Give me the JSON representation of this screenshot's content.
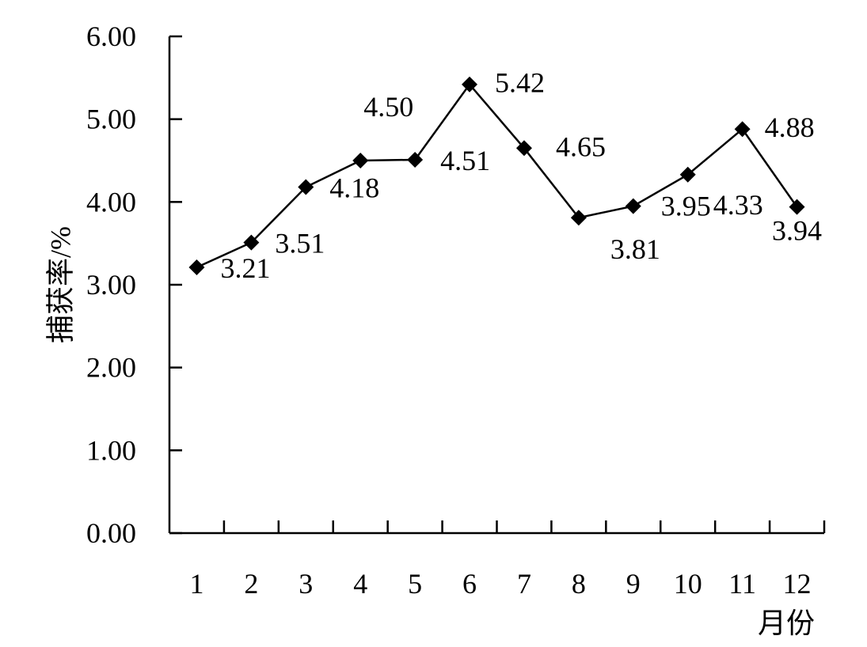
{
  "chart_data": {
    "type": "line",
    "title": "",
    "xlabel": "月份",
    "ylabel": "捕获率/%",
    "categories": [
      "1",
      "2",
      "3",
      "4",
      "5",
      "6",
      "7",
      "8",
      "9",
      "10",
      "11",
      "12"
    ],
    "series": [
      {
        "values": [
          3.21,
          3.51,
          4.18,
          4.5,
          4.51,
          5.42,
          4.65,
          3.81,
          3.95,
          4.33,
          4.88,
          3.94
        ],
        "marker": "diamond",
        "color": "#000000"
      }
    ],
    "data_labels": [
      "3.21",
      "3.51",
      "4.18",
      "4.50",
      "4.51",
      "5.42",
      "4.65",
      "3.81",
      "3.95",
      "4.33",
      "4.88",
      "3.94"
    ],
    "yticks": [
      "0.00",
      "1.00",
      "2.00",
      "3.00",
      "4.00",
      "5.00",
      "6.00"
    ],
    "ylim": [
      0,
      6
    ],
    "grid": false,
    "legend": "none"
  }
}
